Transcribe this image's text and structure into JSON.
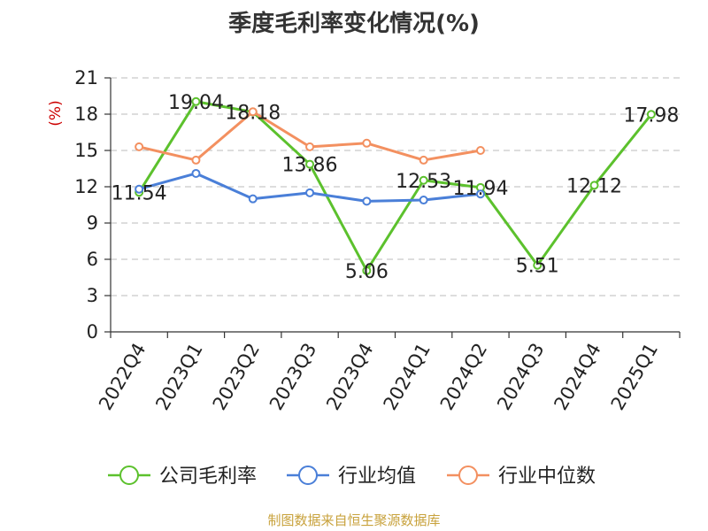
{
  "title": "季度毛利率变化情况(%)",
  "source": "制图数据来自恒生聚源数据库",
  "chart_data": {
    "type": "line",
    "ylabel": "(%)",
    "ylim": [
      0,
      21
    ],
    "yticks": [
      0,
      3,
      6,
      9,
      12,
      15,
      18,
      21
    ],
    "grid": true,
    "legend_position": "bottom",
    "categories": [
      "2022Q4",
      "2023Q1",
      "2023Q2",
      "2023Q3",
      "2023Q4",
      "2024Q1",
      "2024Q2",
      "2024Q3",
      "2024Q4",
      "2025Q1"
    ],
    "series": [
      {
        "name": "公司毛利率",
        "color": "#5cc12d",
        "labeled": true,
        "values": [
          11.54,
          19.04,
          18.18,
          13.86,
          5.06,
          12.53,
          11.94,
          5.51,
          12.12,
          17.98
        ]
      },
      {
        "name": "行业均值",
        "color": "#4a7fd8",
        "labeled": false,
        "values": [
          11.8,
          13.1,
          11.0,
          11.5,
          10.8,
          10.9,
          11.4,
          null,
          null,
          null
        ]
      },
      {
        "name": "行业中位数",
        "color": "#f39060",
        "labeled": false,
        "values": [
          15.3,
          14.2,
          18.2,
          15.3,
          15.6,
          14.2,
          15.0,
          null,
          null,
          null
        ]
      }
    ]
  }
}
